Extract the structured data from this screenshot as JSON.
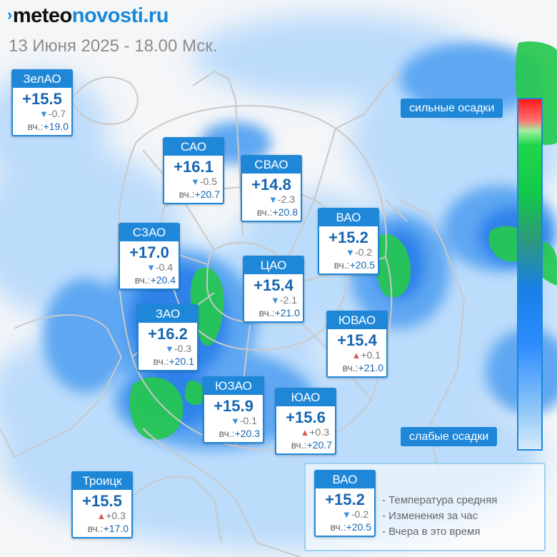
{
  "header": {
    "logo_mark": "›",
    "logo_part1": "meteo",
    "logo_part2": "novosti.ru",
    "subtitle": "13 Июня 2025 - 18.00 Мск."
  },
  "districts": [
    {
      "name": "ЗелАО",
      "temp": "+15.5",
      "change": "-0.7",
      "dir": "down",
      "yesterday_prefix": "вч.:",
      "yesterday": "+19.0"
    },
    {
      "name": "САО",
      "temp": "+16.1",
      "change": "-0.5",
      "dir": "down",
      "yesterday_prefix": "вч.:",
      "yesterday": "+20.7"
    },
    {
      "name": "СВАО",
      "temp": "+14.8",
      "change": "-2.3",
      "dir": "down",
      "yesterday_prefix": "вч.:",
      "yesterday": "+20.8"
    },
    {
      "name": "ВАО",
      "temp": "+15.2",
      "change": "-0.2",
      "dir": "down",
      "yesterday_prefix": "вч.:",
      "yesterday": "+20.5"
    },
    {
      "name": "СЗАО",
      "temp": "+17.0",
      "change": "-0.4",
      "dir": "down",
      "yesterday_prefix": "вч.:",
      "yesterday": "+20.4"
    },
    {
      "name": "ЦАО",
      "temp": "+15.4",
      "change": "-2.1",
      "dir": "down",
      "yesterday_prefix": "вч.:",
      "yesterday": "+21.0"
    },
    {
      "name": "ЗАО",
      "temp": "+16.2",
      "change": "-0.3",
      "dir": "down",
      "yesterday_prefix": "вч.:",
      "yesterday": "+20.1"
    },
    {
      "name": "ЮВАО",
      "temp": "+15.4",
      "change": "+0.1",
      "dir": "up",
      "yesterday_prefix": "вч.:",
      "yesterday": "+21.0"
    },
    {
      "name": "ЮЗАО",
      "temp": "+15.9",
      "change": "-0.1",
      "dir": "down",
      "yesterday_prefix": "вч.:",
      "yesterday": "+20.3"
    },
    {
      "name": "ЮАО",
      "temp": "+15.6",
      "change": "+0.3",
      "dir": "up",
      "yesterday_prefix": "вч.:",
      "yesterday": "+20.7"
    },
    {
      "name": "Троицк",
      "temp": "+15.5",
      "change": "+0.3",
      "dir": "up",
      "yesterday_prefix": "вч.:",
      "yesterday": "+17.0"
    }
  ],
  "scale": {
    "top_label": "сильные осадки",
    "bottom_label": "слабые осадки",
    "colors": [
      "#ff1a1a",
      "#1fd64a",
      "#1a7fe6",
      "#d6ebfc"
    ]
  },
  "legend": {
    "sample": {
      "name": "ВАО",
      "temp": "+15.2",
      "change": "-0.2",
      "dir": "down",
      "yesterday_prefix": "вч.:",
      "yesterday": "+20.5"
    },
    "lines": [
      "- Температура средняя",
      "- Изменения за час",
      "- Вчера в это время"
    ]
  },
  "arrows": {
    "down": "▼",
    "up": "▲"
  }
}
